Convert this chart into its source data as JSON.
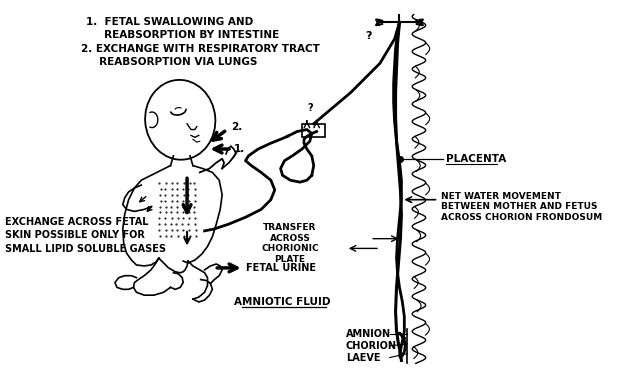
{
  "annotations": {
    "top_left_1": "1.  FETAL SWALLOWING AND\n     REABSORPTION BY INTESTINE",
    "top_left_2": "2. EXCHANGE WITH RESPIRATORY TRACT\n     REABSORPTION VIA LUNGS",
    "left_side": "EXCHANGE ACROSS FETAL\nSKIN POSSIBLE ONLY FOR\nSMALL LIPID SOLUBLE GASES",
    "fetal_urine": "FETAL URINE",
    "amniotic_fluid": "AMNIOTIC FLUID",
    "transfer": "TRANSFER\nACROSS\nCHORIONIC\nPLATE",
    "placenta": "PLACENTA",
    "net_water": "NET WATER MOVEMENT\nBETWEEN MOTHER AND FETUS\nACROSS CHORION FRONDOSUM",
    "amnion": "AMNION",
    "chorion": "CHORION",
    "laeve": "LAEVE",
    "q1": "?",
    "q2": "?",
    "label1": "1.",
    "label2": "2."
  },
  "colors": {
    "black": "#000000",
    "white": "#ffffff"
  }
}
